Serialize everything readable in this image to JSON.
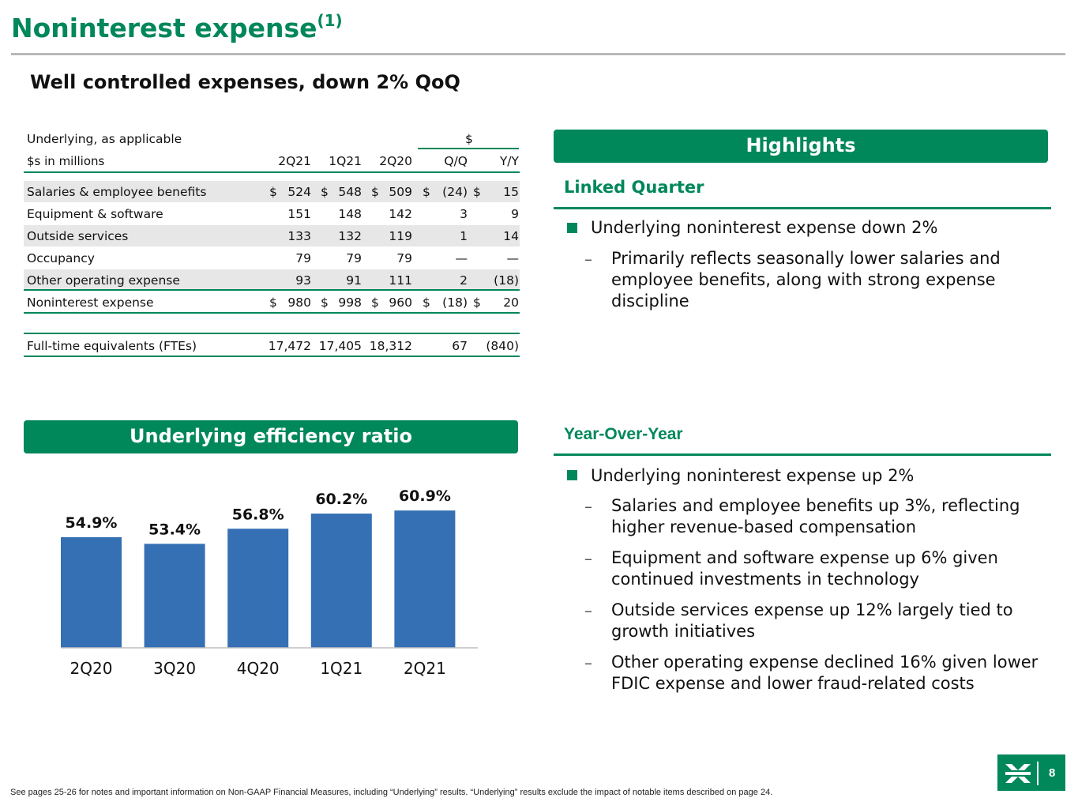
{
  "header": {
    "title": "Noninterest expense",
    "title_sup": "(1)",
    "subtitle": "Well controlled expenses, down 2% QoQ"
  },
  "table": {
    "note_left": "Underlying, as applicable",
    "change_header": "$",
    "units_label": "$s in millions",
    "columns": [
      "2Q21",
      "1Q21",
      "2Q20",
      "Q/Q",
      "Y/Y"
    ],
    "rows": [
      {
        "label": "Salaries & employee benefits",
        "values": [
          "524",
          "548",
          "509",
          "(24)",
          "15"
        ],
        "dollar": true
      },
      {
        "label": "Equipment & software",
        "values": [
          "151",
          "148",
          "142",
          "3",
          "9"
        ],
        "dollar": false
      },
      {
        "label": "Outside services",
        "values": [
          "133",
          "132",
          "119",
          "1",
          "14"
        ],
        "dollar": false
      },
      {
        "label": "Occupancy",
        "values": [
          "79",
          "79",
          "79",
          "—",
          "—"
        ],
        "dollar": false
      },
      {
        "label": "Other operating expense",
        "values": [
          "93",
          "91",
          "111",
          "2",
          "(18)"
        ],
        "dollar": false
      },
      {
        "label": "Noninterest expense",
        "values": [
          "980",
          "998",
          "960",
          "(18)",
          "20"
        ],
        "dollar": true
      },
      {
        "label": "Full-time equivalents (FTEs)",
        "values": [
          "17,472",
          "17,405",
          "18,312",
          "67",
          "(840)"
        ],
        "dollar": false
      }
    ],
    "currency_symbol": "$"
  },
  "highlights": {
    "banner": "Highlights",
    "linked_quarter": {
      "heading": "Linked Quarter",
      "bullet": "Underlying noninterest expense down 2%",
      "subs": [
        "Primarily reflects seasonally lower salaries and employee benefits, along with strong expense discipline"
      ]
    },
    "year_over_year": {
      "heading": "Year-Over-Year",
      "bullet": "Underlying noninterest expense up 2%",
      "subs": [
        "Salaries and employee benefits up 3%, reflecting higher revenue-based compensation",
        "Equipment and software expense up 6% given continued investments in technology",
        "Outside services expense up 12% largely tied to growth initiatives",
        "Other operating expense declined 16% given lower FDIC expense and lower fraud-related costs"
      ]
    },
    "dash": "–"
  },
  "efficiency": {
    "banner": "Underlying efficiency ratio"
  },
  "chart_data": {
    "type": "bar",
    "categories": [
      "2Q20",
      "3Q20",
      "4Q20",
      "1Q21",
      "2Q21"
    ],
    "values": [
      54.9,
      53.4,
      56.8,
      60.2,
      60.9
    ],
    "data_labels": [
      "54.9%",
      "53.4%",
      "56.8%",
      "60.2%",
      "60.9%"
    ],
    "ylim": [
      30,
      62
    ],
    "bar_color": "#356fb4",
    "grid": false
  },
  "footer": {
    "footnote": "See pages 25-26 for notes and important information on Non-GAAP Financial Measures, including “Underlying” results. “Underlying” results exclude the impact of notable items described on page 24.",
    "page_number": "8"
  },
  "colors": {
    "brand_green": "#00875a",
    "bar_blue": "#356fb4",
    "row_shade": "#e7e7e7"
  }
}
